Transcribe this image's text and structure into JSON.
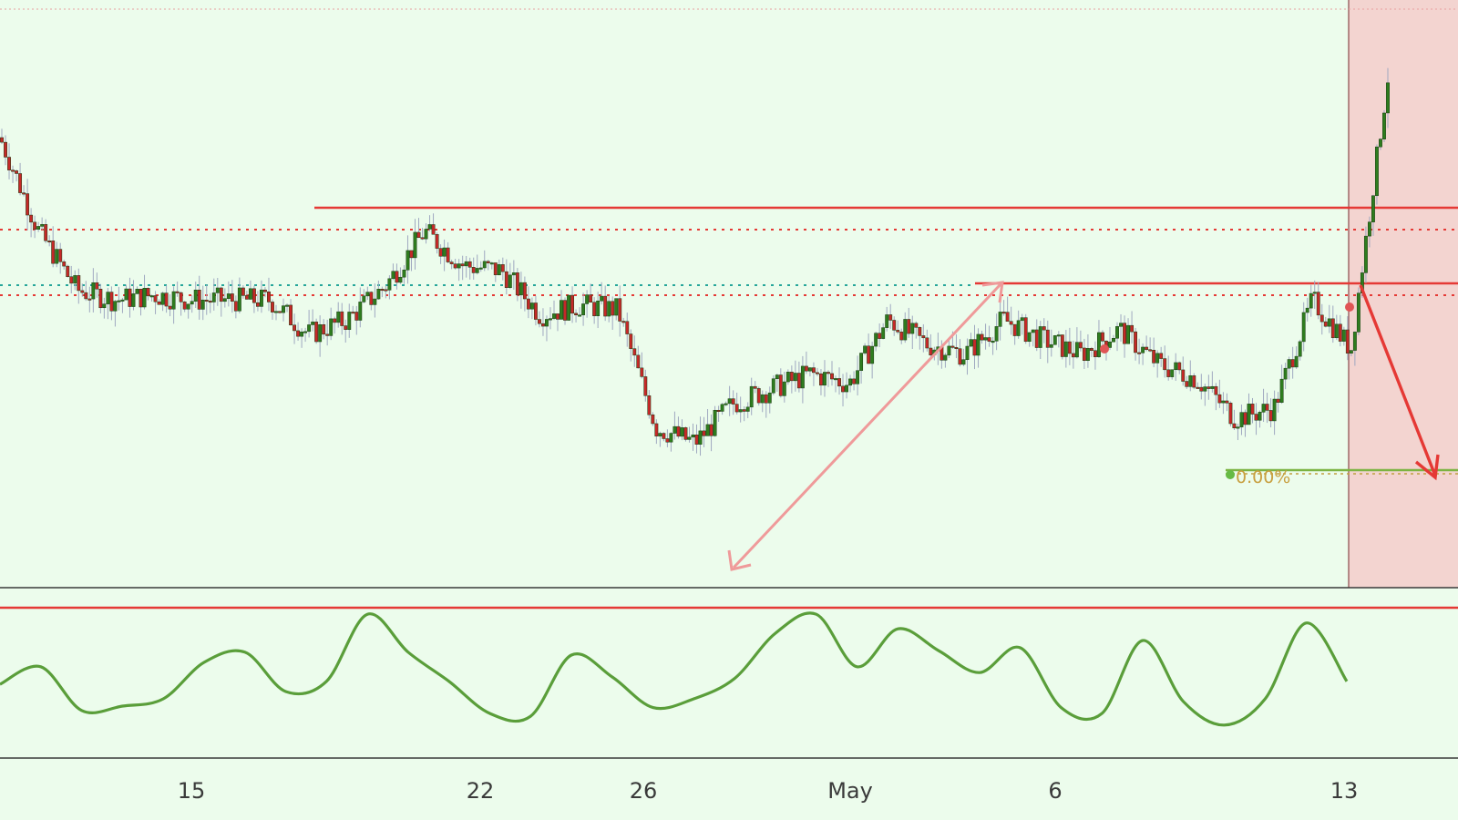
{
  "chart_data": [
    {
      "type": "candlestick",
      "panel": "price",
      "title": "",
      "x_ticks": [
        "15",
        "22",
        "26",
        "May",
        "6",
        "13"
      ],
      "colors": {
        "background": "#ecfcec",
        "up_candle": "#2e7d1e",
        "down_candle": "#c62828",
        "wick": "#9fa8c0",
        "resistance_line": "#e53935",
        "pivot_dotted": "#e53935",
        "mid_dotted": "#26a69a",
        "support_line": "#7cb342",
        "projection_zone": "#f3d4d0",
        "measure_arrow": "#ef9a9a",
        "forecast_arrow": "#e53935"
      },
      "series": [
        {
          "name": "",
          "close_path": [
            {
              "x": "Apr 8",
              "y": 85
            },
            {
              "x": "Apr 9",
              "y": 66
            },
            {
              "x": "Apr 10",
              "y": 54
            },
            {
              "x": "Apr 11",
              "y": 52
            },
            {
              "x": "Apr 12",
              "y": 53
            },
            {
              "x": "Apr 13",
              "y": 52
            },
            {
              "x": "Apr 14",
              "y": 52
            },
            {
              "x": "Apr 15",
              "y": 52
            },
            {
              "x": "Apr 16",
              "y": 45
            },
            {
              "x": "Apr 17",
              "y": 48
            },
            {
              "x": "Apr 18",
              "y": 55
            },
            {
              "x": "Apr 19",
              "y": 66
            },
            {
              "x": "Apr 20",
              "y": 59
            },
            {
              "x": "Apr 21",
              "y": 58
            },
            {
              "x": "Apr 22",
              "y": 49
            },
            {
              "x": "Apr 23",
              "y": 51
            },
            {
              "x": "Apr 24",
              "y": 50
            },
            {
              "x": "Apr 25",
              "y": 26
            },
            {
              "x": "Apr 26",
              "y": 23
            },
            {
              "x": "Apr 27",
              "y": 31
            },
            {
              "x": "Apr 28",
              "y": 34
            },
            {
              "x": "Apr 29",
              "y": 37
            },
            {
              "x": "Apr 30",
              "y": 35
            },
            {
              "x": "May 1",
              "y": 48
            },
            {
              "x": "May 2",
              "y": 43
            },
            {
              "x": "May 3",
              "y": 41
            },
            {
              "x": "May 4",
              "y": 48
            },
            {
              "x": "May 5",
              "y": 44
            },
            {
              "x": "May 6",
              "y": 41
            },
            {
              "x": "May 7",
              "y": 46
            },
            {
              "x": "May 8",
              "y": 39
            },
            {
              "x": "May 9",
              "y": 36
            },
            {
              "x": "May 10",
              "y": 28
            },
            {
              "x": "May 11",
              "y": 30
            },
            {
              "x": "May 12",
              "y": 52
            },
            {
              "x": "May 13",
              "y": 42
            },
            {
              "x": "May 14",
              "y": 100
            }
          ]
        }
      ],
      "annotations": {
        "support_label": "0.00%"
      }
    },
    {
      "type": "line",
      "panel": "oscillator",
      "title": "",
      "series": [
        {
          "name": "",
          "color": "#5a9e3a",
          "values": [
            40,
            52,
            22,
            25,
            30,
            55,
            62,
            35,
            42,
            88,
            62,
            42,
            20,
            18,
            60,
            45,
            24,
            30,
            44,
            75,
            88,
            52,
            78,
            63,
            48,
            65,
            24,
            20,
            70,
            28,
            12,
            30,
            82,
            42
          ]
        }
      ]
    }
  ]
}
